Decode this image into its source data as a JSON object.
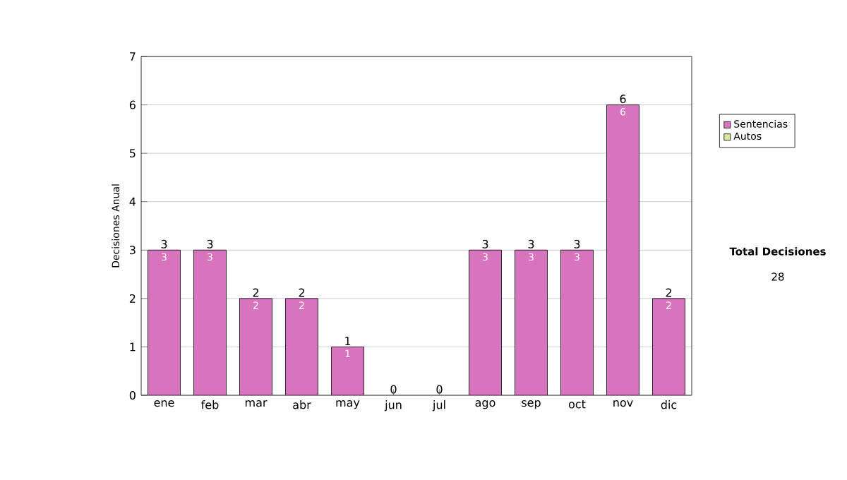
{
  "chart_data": {
    "type": "bar",
    "stacked": true,
    "ylabel": "Decisiones Anual",
    "categories": [
      "ene",
      "feb",
      "mar",
      "abr",
      "may",
      "jun",
      "jul",
      "ago",
      "sep",
      "oct",
      "nov",
      "dic"
    ],
    "series": [
      {
        "name": "Sentencias",
        "color": "#d874be",
        "values": [
          3,
          3,
          2,
          2,
          1,
          0,
          0,
          3,
          3,
          3,
          6,
          2
        ],
        "value_labels": [
          "3",
          "3",
          "2",
          "2",
          "1",
          null,
          null,
          "3",
          "3",
          "3",
          "6",
          "2"
        ]
      },
      {
        "name": "Autos",
        "color": "#d4e89c",
        "values": [
          0,
          0,
          0,
          0,
          0,
          0,
          0,
          0,
          0,
          0,
          0,
          0
        ]
      }
    ],
    "totals": [
      "3",
      "3",
      "2",
      "2",
      "1",
      "0",
      "0",
      "3",
      "3",
      "3",
      "6",
      "2"
    ],
    "ylim": [
      0,
      7
    ],
    "yticks": [
      0,
      1,
      2,
      3,
      4,
      5,
      6,
      7
    ],
    "grid": "y",
    "legend": "right",
    "annotations": [
      "**Total Decisiones**",
      "28"
    ]
  }
}
